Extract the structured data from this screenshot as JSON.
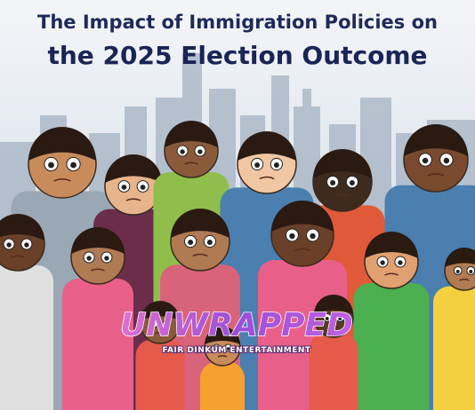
{
  "header": {
    "title_line1": "The Impact of Immigration Policies on",
    "title_line2": "the 2025 Election Outcome"
  },
  "watermark": {
    "brand": "UNWRAPPED",
    "tagline": "FAIR DINKUM ENTERTAINMENT"
  }
}
